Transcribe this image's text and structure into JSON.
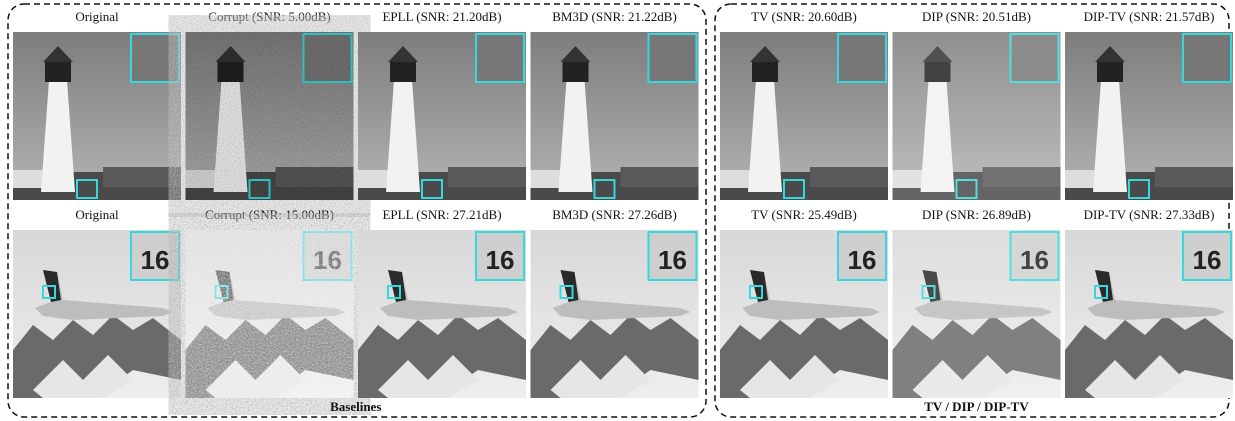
{
  "figure": {
    "groups": [
      {
        "label": "Baselines",
        "rows": [
          [
            "Original",
            "Corrupt (SNR: 5.00dB)",
            "EPLL (SNR: 21.20dB)",
            "BM3D (SNR: 21.22dB)"
          ],
          [
            "Original",
            "Corrupt (SNR: 15.00dB)",
            "EPLL (SNR: 27.21dB)",
            "BM3D (SNR: 27.26dB)"
          ]
        ]
      },
      {
        "label": "TV / DIP / DIP-TV",
        "rows": [
          [
            "TV (SNR: 20.60dB)",
            "DIP (SNR: 20.51dB)",
            "DIP-TV (SNR: 21.57dB)"
          ],
          [
            "TV (SNR: 25.49dB)",
            "DIP (SNR: 26.89dB)",
            "DIP-TV (SNR: 27.33dB)"
          ]
        ]
      }
    ]
  }
}
